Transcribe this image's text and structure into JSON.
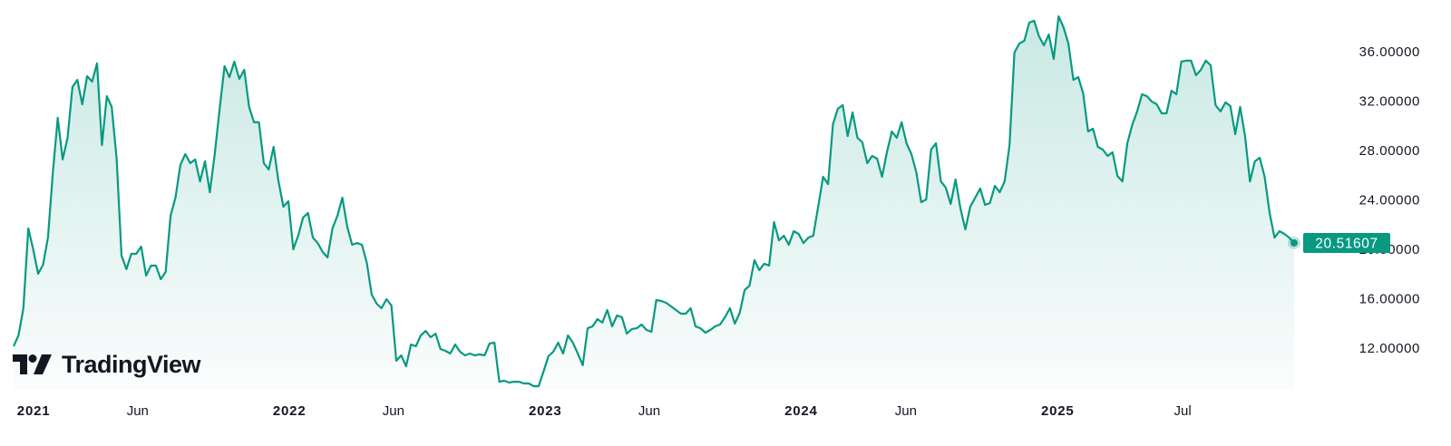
{
  "chart_data": {
    "type": "area",
    "title": "",
    "xlabel": "",
    "ylabel": "",
    "ylim": [
      8.2,
      39.6
    ],
    "y_ticks": [
      "12.00000",
      "16.00000",
      "20.00000",
      "24.00000",
      "28.00000",
      "32.00000",
      "36.00000"
    ],
    "x_ticks": [
      {
        "label": "2021",
        "date": "2021-01-01",
        "bold": true
      },
      {
        "label": "Jun",
        "date": "2021-06-01",
        "bold": false
      },
      {
        "label": "2022",
        "date": "2022-01-01",
        "bold": true
      },
      {
        "label": "Jun",
        "date": "2022-06-01",
        "bold": false
      },
      {
        "label": "2023",
        "date": "2023-01-01",
        "bold": true
      },
      {
        "label": "Jun",
        "date": "2023-06-01",
        "bold": false
      },
      {
        "label": "2024",
        "date": "2024-01-01",
        "bold": true
      },
      {
        "label": "Jun",
        "date": "2024-06-01",
        "bold": false
      },
      {
        "label": "2025",
        "date": "2025-01-01",
        "bold": true
      },
      {
        "label": "Jul",
        "date": "2025-07-01",
        "bold": false
      }
    ],
    "grid": false,
    "line_color": "#089981",
    "last_price_label": "20.51607",
    "x": [
      "2020-12-06",
      "2020-12-13",
      "2020-12-20",
      "2020-12-27",
      "2021-01-03",
      "2021-01-10",
      "2021-01-17",
      "2021-01-24",
      "2021-01-31",
      "2021-02-07",
      "2021-02-14",
      "2021-02-21",
      "2021-02-28",
      "2021-03-07",
      "2021-03-14",
      "2021-03-21",
      "2021-03-28",
      "2021-04-04",
      "2021-04-11",
      "2021-04-18",
      "2021-04-25",
      "2021-05-02",
      "2021-05-09",
      "2021-05-16",
      "2021-05-23",
      "2021-05-30",
      "2021-06-06",
      "2021-06-13",
      "2021-06-20",
      "2021-06-27",
      "2021-07-04",
      "2021-07-11",
      "2021-07-18",
      "2021-07-25",
      "2021-08-01",
      "2021-08-08",
      "2021-08-15",
      "2021-08-22",
      "2021-08-29",
      "2021-09-05",
      "2021-09-12",
      "2021-09-19",
      "2021-09-26",
      "2021-10-03",
      "2021-10-10",
      "2021-10-17",
      "2021-10-24",
      "2021-10-31",
      "2021-11-07",
      "2021-11-14",
      "2021-11-21",
      "2021-11-28",
      "2021-12-05",
      "2021-12-12",
      "2021-12-19",
      "2021-12-26",
      "2022-01-02",
      "2022-01-09",
      "2022-01-16",
      "2022-01-23",
      "2022-01-30",
      "2022-02-06",
      "2022-02-13",
      "2022-02-20",
      "2022-02-27",
      "2022-03-06",
      "2022-03-13",
      "2022-03-20",
      "2022-03-27",
      "2022-04-03",
      "2022-04-10",
      "2022-04-17",
      "2022-04-24",
      "2022-05-01",
      "2022-05-08",
      "2022-05-15",
      "2022-05-22",
      "2022-05-29",
      "2022-06-05",
      "2022-06-12",
      "2022-06-19",
      "2022-06-26",
      "2022-07-03",
      "2022-07-10",
      "2022-07-17",
      "2022-07-24",
      "2022-07-31",
      "2022-08-07",
      "2022-08-14",
      "2022-08-21",
      "2022-08-28",
      "2022-09-04",
      "2022-09-11",
      "2022-09-18",
      "2022-09-25",
      "2022-10-02",
      "2022-10-09",
      "2022-10-16",
      "2022-10-23",
      "2022-10-30",
      "2022-11-06",
      "2022-11-13",
      "2022-11-20",
      "2022-11-27",
      "2022-12-04",
      "2022-12-11",
      "2022-12-18",
      "2022-12-25",
      "2023-01-01",
      "2023-01-08",
      "2023-01-15",
      "2023-01-22",
      "2023-01-29",
      "2023-02-05",
      "2023-02-12",
      "2023-02-19",
      "2023-02-26",
      "2023-03-05",
      "2023-03-12",
      "2023-03-19",
      "2023-03-26",
      "2023-04-02",
      "2023-04-09",
      "2023-04-16",
      "2023-04-23",
      "2023-04-30",
      "2023-05-07",
      "2023-05-14",
      "2023-05-21",
      "2023-05-28",
      "2023-06-04",
      "2023-06-11",
      "2023-06-18",
      "2023-06-25",
      "2023-07-02",
      "2023-07-09",
      "2023-07-16",
      "2023-07-23",
      "2023-07-30",
      "2023-08-06",
      "2023-08-13",
      "2023-08-20",
      "2023-08-27",
      "2023-09-03",
      "2023-09-10",
      "2023-09-17",
      "2023-09-24",
      "2023-10-01",
      "2023-10-08",
      "2023-10-15",
      "2023-10-22",
      "2023-10-29",
      "2023-11-05",
      "2023-11-12",
      "2023-11-19",
      "2023-11-26",
      "2023-12-03",
      "2023-12-10",
      "2023-12-17",
      "2023-12-24",
      "2023-12-31",
      "2024-01-07",
      "2024-01-14",
      "2024-01-21",
      "2024-01-28",
      "2024-02-04",
      "2024-02-11",
      "2024-02-18",
      "2024-02-25",
      "2024-03-03",
      "2024-03-10",
      "2024-03-17",
      "2024-03-24",
      "2024-03-31",
      "2024-04-07",
      "2024-04-14",
      "2024-04-21",
      "2024-04-28",
      "2024-05-05",
      "2024-05-12",
      "2024-05-19",
      "2024-05-26",
      "2024-06-02",
      "2024-06-09",
      "2024-06-16",
      "2024-06-23",
      "2024-06-30",
      "2024-07-07",
      "2024-07-14",
      "2024-07-21",
      "2024-07-28",
      "2024-08-04",
      "2024-08-11",
      "2024-08-18",
      "2024-08-25",
      "2024-09-01",
      "2024-09-08",
      "2024-09-15",
      "2024-09-22",
      "2024-09-29",
      "2024-10-06",
      "2024-10-13",
      "2024-10-20",
      "2024-10-27",
      "2024-11-03",
      "2024-11-10",
      "2024-11-17",
      "2024-11-24",
      "2024-12-01",
      "2024-12-08",
      "2024-12-15",
      "2024-12-22",
      "2024-12-29",
      "2025-01-05",
      "2025-01-12",
      "2025-01-19",
      "2025-01-26",
      "2025-02-02",
      "2025-02-09",
      "2025-02-16",
      "2025-02-23",
      "2025-03-02",
      "2025-03-09",
      "2025-03-16",
      "2025-03-23",
      "2025-03-30",
      "2025-04-06",
      "2025-04-13",
      "2025-04-20",
      "2025-04-27",
      "2025-05-04",
      "2025-05-11",
      "2025-05-18",
      "2025-05-25",
      "2025-06-01",
      "2025-06-08",
      "2025-06-15",
      "2025-06-22",
      "2025-06-29",
      "2025-07-06",
      "2025-07-13",
      "2025-07-20",
      "2025-07-27",
      "2025-08-03",
      "2025-08-10",
      "2025-08-17",
      "2025-08-24",
      "2025-08-31",
      "2025-09-07",
      "2025-09-14",
      "2025-09-21",
      "2025-09-28",
      "2025-10-05",
      "2025-10-12",
      "2025-10-19",
      "2025-10-26",
      "2025-11-02",
      "2025-11-09",
      "2025-11-16",
      "2025-11-23",
      "2025-11-30",
      "2025-12-07"
    ],
    "values": [
      12.15,
      13.03,
      15.23,
      21.69,
      20.0,
      18.02,
      18.75,
      20.95,
      26.24,
      30.64,
      27.27,
      29.03,
      33.14,
      33.72,
      31.74,
      34.02,
      33.58,
      35.05,
      28.44,
      32.4,
      31.52,
      27.34,
      19.49,
      18.39,
      19.63,
      19.63,
      20.22,
      17.87,
      18.68,
      18.68,
      17.58,
      18.17,
      22.72,
      24.18,
      26.83,
      27.71,
      26.97,
      27.27,
      25.5,
      27.12,
      24.62,
      27.71,
      31.38,
      34.83,
      33.94,
      35.19,
      33.8,
      34.53,
      31.52,
      30.28,
      30.28,
      26.97,
      26.46,
      28.29,
      25.5,
      23.45,
      23.89,
      20.0,
      21.1,
      22.57,
      22.94,
      20.95,
      20.51,
      19.78,
      19.34,
      21.69,
      22.72,
      24.18,
      21.83,
      20.37,
      20.51,
      20.37,
      18.9,
      16.33,
      15.6,
      15.23,
      15.96,
      15.45,
      10.97,
      11.41,
      10.53,
      12.29,
      12.15,
      13.03,
      13.39,
      12.88,
      13.17,
      11.93,
      11.78,
      11.56,
      12.29,
      11.71,
      11.41,
      11.56,
      11.41,
      11.49,
      11.41,
      12.37,
      12.44,
      9.28,
      9.36,
      9.21,
      9.28,
      9.28,
      9.14,
      9.14,
      8.92,
      8.92,
      10.09,
      11.34,
      11.71,
      12.44,
      11.56,
      13.03,
      12.44,
      11.56,
      10.61,
      13.61,
      13.76,
      14.35,
      14.06,
      15.08,
      13.76,
      14.64,
      14.5,
      13.17,
      13.54,
      13.61,
      13.91,
      13.47,
      13.32,
      15.89,
      15.82,
      15.67,
      15.38,
      15.08,
      14.79,
      14.79,
      15.23,
      13.76,
      13.61,
      13.25,
      13.47,
      13.76,
      13.91,
      14.5,
      15.23,
      13.98,
      14.86,
      16.7,
      17.06,
      19.12,
      18.31,
      18.83,
      18.68,
      22.2,
      20.73,
      21.1,
      20.37,
      21.47,
      21.25,
      20.51,
      20.95,
      21.1,
      23.45,
      25.87,
      25.28,
      30.13,
      31.38,
      31.67,
      29.17,
      31.08,
      29.03,
      28.66,
      26.97,
      27.56,
      27.34,
      25.87,
      27.85,
      29.54,
      29.03,
      30.28,
      28.59,
      27.71,
      26.24,
      23.82,
      24.04,
      28.07,
      28.59,
      25.5,
      24.99,
      23.67,
      25.65,
      23.3,
      21.61,
      23.45,
      24.18,
      24.92,
      23.6,
      23.74,
      25.14,
      24.62,
      25.5,
      28.44,
      35.93,
      36.66,
      36.88,
      38.35,
      38.5,
      37.25,
      36.51,
      37.39,
      35.41,
      38.86,
      37.98,
      36.66,
      33.72,
      33.94,
      32.62,
      29.54,
      29.76,
      28.29,
      28.07,
      27.56,
      27.85,
      25.94,
      25.5,
      28.59,
      30.06,
      31.16,
      32.55,
      32.4,
      31.96,
      31.74,
      31.01,
      31.01,
      32.84,
      32.55,
      35.19,
      35.27,
      35.27,
      34.09,
      34.53,
      35.27,
      34.9,
      31.67,
      31.16,
      31.89,
      31.6,
      29.32,
      31.52,
      29.17,
      25.5,
      27.12,
      27.41,
      25.87,
      22.94,
      20.95,
      21.47,
      21.25,
      20.95,
      20.51607
    ]
  },
  "branding": {
    "logo_text": "TradingView",
    "logo_icon": "tradingview-logo-icon"
  }
}
